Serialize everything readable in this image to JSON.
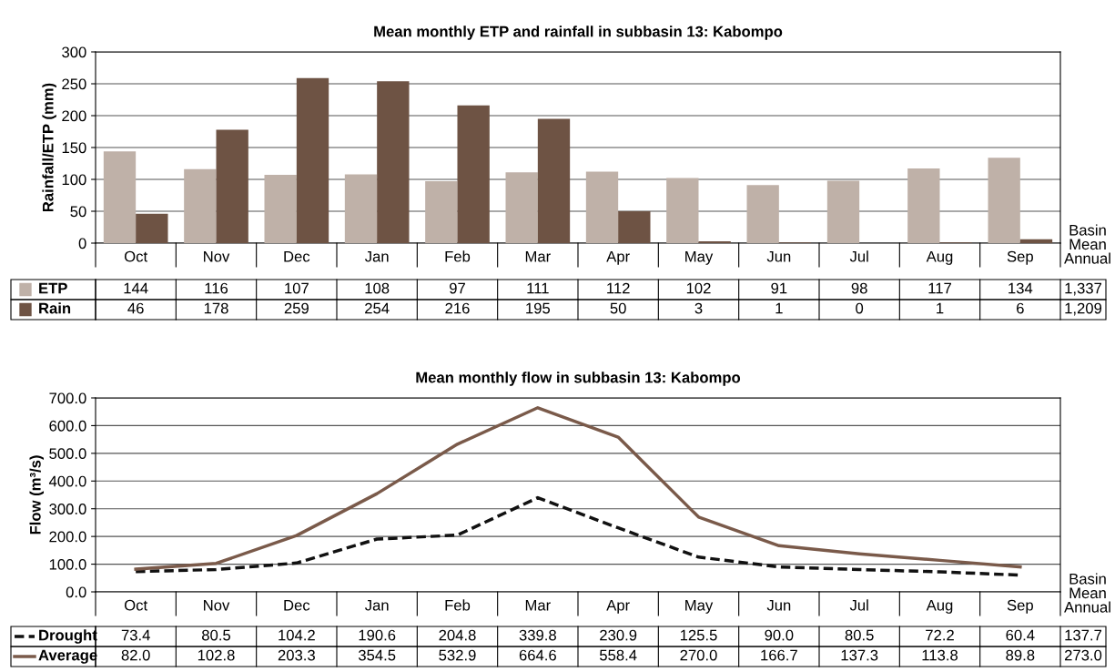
{
  "chart_data": [
    {
      "type": "bar",
      "title": "Mean monthly ETP and rainfall in subbasin 13: Kabompo",
      "ylabel": "Rainfall/ETP (mm)",
      "categories": [
        "Oct",
        "Nov",
        "Dec",
        "Jan",
        "Feb",
        "Mar",
        "Apr",
        "May",
        "Jun",
        "Jul",
        "Aug",
        "Sep"
      ],
      "series": [
        {
          "name": "ETP",
          "color": "#bfb1a8",
          "values": [
            144,
            116,
            107,
            108,
            97,
            111,
            112,
            102,
            91,
            98,
            117,
            134
          ]
        },
        {
          "name": "Rain",
          "color": "#6e5344",
          "values": [
            46,
            178,
            259,
            254,
            216,
            195,
            50,
            3,
            1,
            0,
            1,
            6
          ]
        }
      ],
      "ylim": [
        0,
        300
      ],
      "yticks": [
        0,
        50,
        100,
        150,
        200,
        250,
        300
      ],
      "grid": "y",
      "data_labels": true,
      "legend": "bottom",
      "annotations": [
        "Basin\nMean\nAnnual",
        "1,337",
        "1,209"
      ]
    },
    {
      "type": "line",
      "title": "Mean monthly flow in subbasin 13: Kabompo",
      "ylabel": "Flow (m³/s)",
      "categories": [
        "Oct",
        "Nov",
        "Dec",
        "Jan",
        "Feb",
        "Mar",
        "Apr",
        "May",
        "Jun",
        "Jul",
        "Aug",
        "Sep"
      ],
      "series": [
        {
          "name": "Drought",
          "color": "#111111",
          "line_style": "dashed",
          "values": [
            73.4,
            80.5,
            104.2,
            190.6,
            204.8,
            339.8,
            230.9,
            125.5,
            90.0,
            80.5,
            72.2,
            60.4
          ],
          "value_labels": [
            "73.4",
            "80.5",
            "104.2",
            "190.6",
            "204.8",
            "339.8",
            "230.9",
            "125.5",
            "90.0",
            "80.5",
            "72.2",
            "60.4"
          ]
        },
        {
          "name": "Average",
          "color": "#7a5a4a",
          "line_style": "solid",
          "values": [
            82.0,
            102.8,
            203.3,
            354.5,
            532.9,
            664.6,
            558.4,
            270.0,
            166.7,
            137.3,
            113.8,
            89.8
          ],
          "value_labels": [
            "82.0",
            "102.8",
            "203.3",
            "354.5",
            "532.9",
            "664.6",
            "558.4",
            "270.0",
            "166.7",
            "137.3",
            "113.8",
            "89.8"
          ]
        }
      ],
      "legend": "bottom",
      "ylim": [
        0,
        700
      ],
      "yticks": [
        {
          "value": 0,
          "label": "0.0"
        },
        {
          "value": 100,
          "label": "100.0"
        },
        {
          "value": 200,
          "label": "200.0"
        },
        {
          "value": 300,
          "label": "300.0"
        },
        {
          "value": 400,
          "label": "400.0"
        },
        {
          "value": 500,
          "label": "500.0"
        },
        {
          "value": 600,
          "label": "600.0"
        },
        {
          "value": 700,
          "label": "700.0"
        }
      ],
      "grid": "y",
      "annotations": [
        "Basin\nMean\nAnnual",
        "137.7",
        "273.0"
      ]
    }
  ]
}
